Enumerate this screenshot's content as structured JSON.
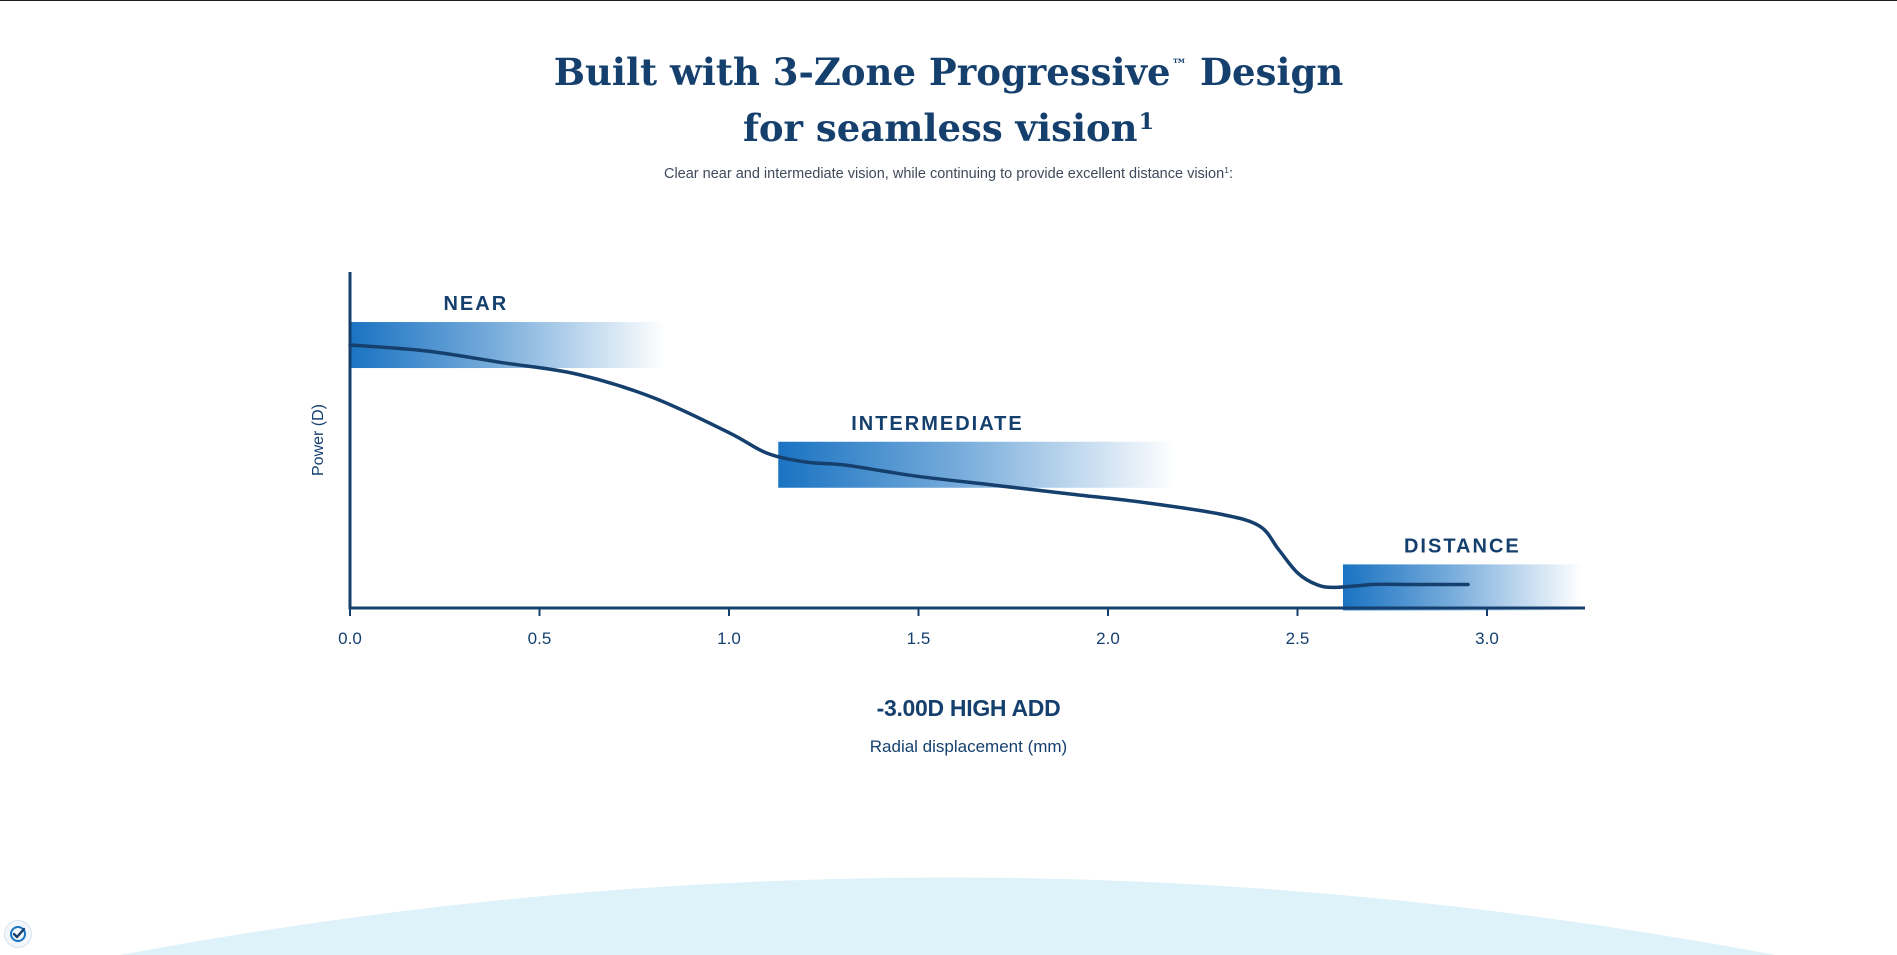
{
  "page": {
    "title_line1": "Built with 3-Zone Progressive",
    "title_tm": "™",
    "title_line1_end": " Design",
    "title_line2": "for seamless vision",
    "title_ref": "1",
    "subtitle": "Clear near and intermediate vision, while continuing to provide excellent distance vision",
    "subtitle_ref": "1",
    "subtitle_end": ":"
  },
  "chart_data": {
    "type": "line",
    "xlabel": "Radial displacement (mm)",
    "ylabel": "Power (D)",
    "caption": "-3.00D HIGH ADD",
    "xlim": [
      0,
      3.25
    ],
    "ylim": [
      0,
      1
    ],
    "x_ticks": [
      "0.0",
      "0.5",
      "1.0",
      "1.5",
      "2.0",
      "2.5",
      "3.0"
    ],
    "x_tick_values": [
      0,
      0.5,
      1.0,
      1.5,
      2.0,
      2.5,
      3.0
    ],
    "y_ticks": [],
    "grid": false,
    "series": [
      {
        "x": [
          0,
          0.2,
          0.4,
          0.6,
          0.8,
          1.0,
          1.1,
          1.2,
          1.3,
          1.4,
          1.5,
          1.7,
          1.9,
          2.1,
          2.3,
          2.4,
          2.45,
          2.5,
          2.55,
          2.6,
          2.7,
          2.8,
          2.95
        ],
        "y": [
          0.88,
          0.86,
          0.82,
          0.78,
          0.7,
          0.58,
          0.51,
          0.48,
          0.47,
          0.45,
          0.43,
          0.4,
          0.37,
          0.34,
          0.3,
          0.26,
          0.18,
          0.1,
          0.06,
          0.05,
          0.06,
          0.06,
          0.06
        ]
      }
    ],
    "zones": [
      {
        "label": "NEAR",
        "x_start": 0.0,
        "x_end": 0.83,
        "y_center": 0.88,
        "color": "#1a73c2"
      },
      {
        "label": "INTERMEDIATE",
        "x_start": 1.13,
        "x_end": 2.18,
        "y_center": 0.47,
        "color": "#1a73c2"
      },
      {
        "label": "DISTANCE",
        "x_start": 2.62,
        "x_end": 3.25,
        "y_center": 0.05,
        "color": "#1a73c2"
      }
    ],
    "line_color": "#15406e",
    "axis_color": "#15406e"
  },
  "decor": {
    "arc_color": "#ddf2f9",
    "badge_color": "#1a73c2"
  }
}
